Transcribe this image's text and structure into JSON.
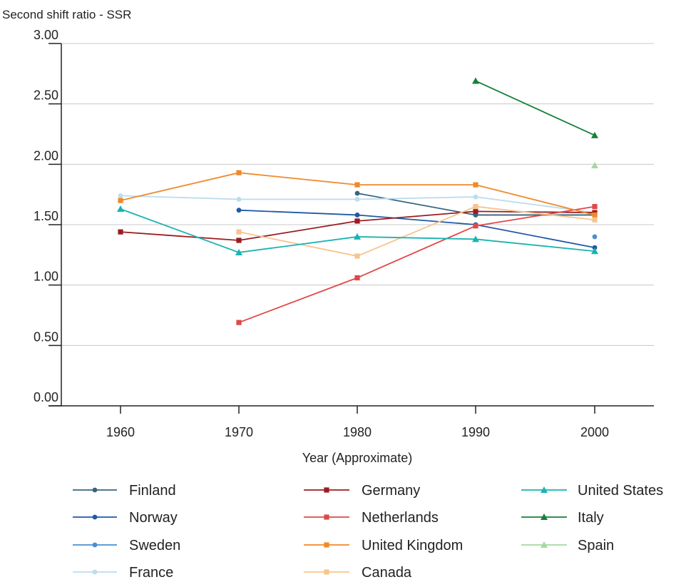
{
  "chart_data": {
    "type": "line",
    "title": "",
    "ylabel": "Second shift ratio - SSR",
    "xlabel": "Year (Approximate)",
    "x": [
      1960,
      1970,
      1980,
      1990,
      2000
    ],
    "x_tick_labels": [
      "1960",
      "1970",
      "1980",
      "1990",
      "2000"
    ],
    "ylim": [
      0,
      3
    ],
    "y_ticks": [
      0,
      0.5,
      1,
      1.5,
      2,
      2.5,
      3
    ],
    "y_tick_labels": [
      "0.00",
      "0.50",
      "1.00",
      "1.50",
      "2.00",
      "2.50",
      "3.00"
    ],
    "grid": "horizontal",
    "legend_position": "bottom",
    "series": [
      {
        "name": "Finland",
        "color": "#36647f",
        "marker": "circle",
        "values": [
          null,
          null,
          1.76,
          1.58,
          1.58
        ]
      },
      {
        "name": "Norway",
        "color": "#1f5aa6",
        "marker": "circle",
        "values": [
          null,
          1.62,
          1.58,
          1.5,
          1.31
        ]
      },
      {
        "name": "Sweden",
        "color": "#4a90d0",
        "marker": "circle",
        "values": [
          null,
          null,
          null,
          null,
          1.4
        ]
      },
      {
        "name": "France",
        "color": "#bcdcef",
        "marker": "circle",
        "values": [
          1.74,
          1.71,
          1.71,
          1.73,
          1.6
        ]
      },
      {
        "name": "Germany",
        "color": "#9b1c20",
        "marker": "square",
        "values": [
          1.44,
          1.37,
          1.53,
          1.61,
          1.6
        ]
      },
      {
        "name": "Netherlands",
        "color": "#e04848",
        "marker": "square",
        "values": [
          null,
          0.69,
          1.06,
          1.49,
          1.65
        ]
      },
      {
        "name": "United Kingdom",
        "color": "#ef8a2a",
        "marker": "square",
        "values": [
          1.7,
          1.93,
          1.83,
          1.83,
          1.58
        ]
      },
      {
        "name": "Canada",
        "color": "#f7c48e",
        "marker": "square",
        "values": [
          null,
          1.44,
          1.24,
          1.65,
          1.54
        ]
      },
      {
        "name": "United States",
        "color": "#1ab3b3",
        "marker": "triangle",
        "values": [
          1.63,
          1.27,
          1.4,
          1.38,
          1.28
        ]
      },
      {
        "name": "Italy",
        "color": "#15803a",
        "marker": "triangle",
        "values": [
          null,
          null,
          null,
          2.69,
          2.24
        ]
      },
      {
        "name": "Spain",
        "color": "#a3d9a1",
        "marker": "triangle",
        "values": [
          null,
          null,
          null,
          null,
          1.99
        ]
      }
    ]
  }
}
